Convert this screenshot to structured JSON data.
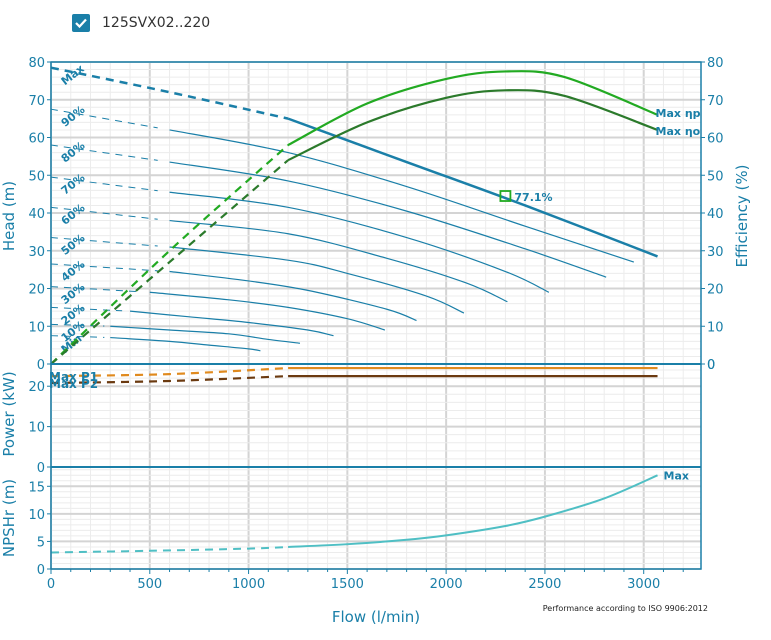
{
  "header": {
    "checkbox_checked": true,
    "title": "125SVX02..220"
  },
  "footer_note": "Performance according to ISO 9906:2012",
  "colors": {
    "axis": "#1a7fa8",
    "head_curve": "#1a7fa8",
    "eff_pump": "#22aa22",
    "eff_overall": "#2b7a2b",
    "power_p1": "#e08a1e",
    "power_p2": "#6b3a10",
    "npsh": "#4fbfc4",
    "grid_major": "#d4d4d4",
    "grid_minor": "#ececec",
    "bep_marker": "#22aa22"
  },
  "chart_data": [
    {
      "type": "line",
      "name": "head-panel",
      "xlabel": "Flow (l/min)",
      "ylabel": "Head (m)",
      "ylabel_right": "Efficiency (%)",
      "xlim": [
        0,
        3290
      ],
      "ylim": [
        0,
        80
      ],
      "ylim_right": [
        0,
        80
      ],
      "xticks": [
        0,
        500,
        1000,
        1500,
        2000,
        2500,
        3000
      ],
      "yticks": [
        0,
        10,
        20,
        30,
        40,
        50,
        60,
        70,
        80
      ],
      "yticks_right": [
        0,
        10,
        20,
        30,
        40,
        50,
        60,
        70,
        80
      ],
      "grid": true,
      "dashed_until_flow": 1200,
      "head_curves": [
        {
          "label": "Max",
          "x": [
            0,
            600,
            1200,
            1800,
            2400,
            3070
          ],
          "y": [
            78.5,
            72,
            65,
            53.5,
            42,
            28.5
          ],
          "width": "thick"
        },
        {
          "label": "90%",
          "x": [
            0,
            600,
            1200,
            1800,
            2400,
            2950
          ],
          "y": [
            67.5,
            62,
            56,
            47,
            36.5,
            27
          ]
        },
        {
          "label": "80%",
          "x": [
            0,
            600,
            1200,
            1800,
            2400,
            2810
          ],
          "y": [
            58,
            53.5,
            48.5,
            40.5,
            30.5,
            23
          ]
        },
        {
          "label": "70%",
          "x": [
            0,
            600,
            1200,
            1800,
            2300,
            2520
          ],
          "y": [
            49.5,
            45.5,
            41.5,
            33.5,
            24.5,
            19
          ]
        },
        {
          "label": "60%",
          "x": [
            0,
            600,
            1200,
            1700,
            2100,
            2310
          ],
          "y": [
            41.5,
            38,
            34.5,
            28,
            21.5,
            16.5
          ]
        },
        {
          "label": "50%",
          "x": [
            0,
            600,
            1200,
            1500,
            1900,
            2090
          ],
          "y": [
            33.5,
            31,
            27.5,
            24,
            18,
            13.5
          ]
        },
        {
          "label": "40%",
          "x": [
            0,
            600,
            1000,
            1300,
            1700,
            1850
          ],
          "y": [
            26.5,
            24.5,
            22,
            19.5,
            14.5,
            11.5
          ]
        },
        {
          "label": "30%",
          "x": [
            0,
            500,
            900,
            1200,
            1500,
            1690
          ],
          "y": [
            20.5,
            19,
            17,
            15,
            12,
            9
          ]
        },
        {
          "label": "20%",
          "x": [
            0,
            400,
            700,
            1000,
            1300,
            1430
          ],
          "y": [
            15,
            14,
            12.5,
            11,
            9,
            7.5
          ]
        },
        {
          "label": "10%",
          "x": [
            0,
            300,
            600,
            900,
            1100,
            1260
          ],
          "y": [
            10.5,
            10,
            9,
            8,
            6.5,
            5.5
          ]
        },
        {
          "label": "Min",
          "x": [
            0,
            300,
            600,
            800,
            1000,
            1060
          ],
          "y": [
            7.5,
            7,
            6,
            5,
            4,
            3.5
          ]
        }
      ],
      "efficiency_curves": [
        {
          "label": "Max ηp",
          "x": [
            0,
            600,
            1200,
            1600,
            2000,
            2300,
            2600,
            3070
          ],
          "y": [
            0,
            30,
            58,
            69,
            75.5,
            77.5,
            76,
            66
          ]
        },
        {
          "label": "Max ηo",
          "x": [
            0,
            600,
            1200,
            1600,
            2000,
            2300,
            2600,
            3070
          ],
          "y": [
            0,
            27,
            54,
            64,
            70.5,
            72.5,
            71,
            62
          ]
        }
      ],
      "bep": {
        "flow": 2300,
        "head": 44.5,
        "label": "77.1%"
      }
    },
    {
      "type": "line",
      "name": "power-panel",
      "ylabel": "Power (kW)",
      "xlim": [
        0,
        3290
      ],
      "ylim": [
        0,
        25.5
      ],
      "yticks": [
        0,
        10,
        20
      ],
      "grid": true,
      "series": [
        {
          "label": "Max P1",
          "x": [
            0,
            600,
            1200,
            3070
          ],
          "y": [
            22.5,
            23,
            24.5,
            24.5
          ]
        },
        {
          "label": "Max P2",
          "x": [
            0,
            600,
            1200,
            3070
          ],
          "y": [
            20.8,
            21.3,
            22.5,
            22.5
          ]
        }
      ]
    },
    {
      "type": "line",
      "name": "npsh-panel",
      "ylabel": "NPSHr (m)",
      "xlabel": "Flow (l/min)",
      "xlim": [
        0,
        3290
      ],
      "ylim": [
        0,
        18.5
      ],
      "yticks": [
        0,
        5,
        10,
        15
      ],
      "grid": true,
      "series": [
        {
          "label": "Max",
          "x": [
            0,
            500,
            1000,
            1200,
            1500,
            1800,
            2000,
            2300,
            2500,
            2800,
            3070
          ],
          "y": [
            3,
            3.3,
            3.7,
            4,
            4.5,
            5.3,
            6.1,
            7.8,
            9.5,
            12.8,
            17
          ]
        }
      ]
    }
  ]
}
